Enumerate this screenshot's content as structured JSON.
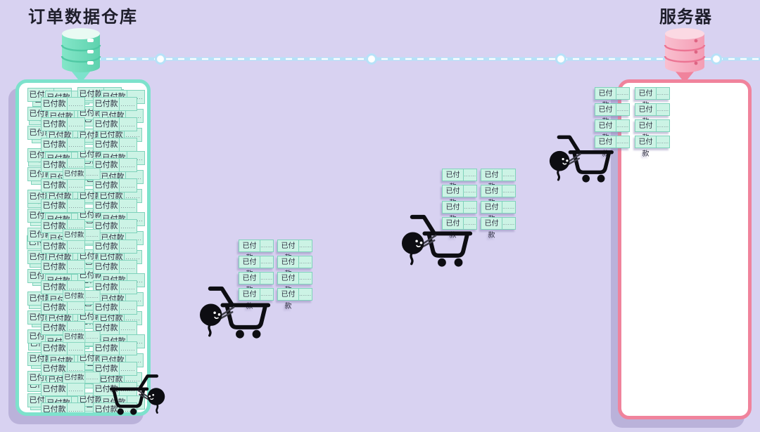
{
  "page": {
    "background_color": "#d8d2f1"
  },
  "palette": {
    "ink": "#1e1e2b",
    "teal_border": "#7de2cc",
    "teal_body": "#84e6c8",
    "teal_body_dark": "#5ed2ae",
    "teal_top": "#e9faf3",
    "teal_stripe": "#4fc9a4",
    "pink_border": "#f0839c",
    "pink_body": "#f9bfcf",
    "pink_body_dark": "#f49db4",
    "pink_top": "#fbd9e3",
    "pink_stripe": "#ec7493",
    "pink_dot": "#df6483",
    "card_fill": "#ccf3e5",
    "card_border": "#7fd2bb",
    "card_text": "#2b2b3d",
    "line_blue": "#b7e2f8",
    "node_fill": "#ffffff",
    "panel_shadow": "#bab2da",
    "cart_black": "#0d0d12"
  },
  "warehouse": {
    "title": "订单数据仓库",
    "stack_rows": 16,
    "stack_cols": 2
  },
  "server": {
    "title": "服务器",
    "grid_rows": 4,
    "grid_cols": 2
  },
  "card": {
    "label": "已付款",
    "dots": "......."
  },
  "transfers": {
    "batch_count": 2,
    "batch_rows": 4,
    "batch_cols": 2
  },
  "connection": {
    "style": "dashed",
    "node_count": 4
  },
  "couriers": {
    "count": 4
  }
}
